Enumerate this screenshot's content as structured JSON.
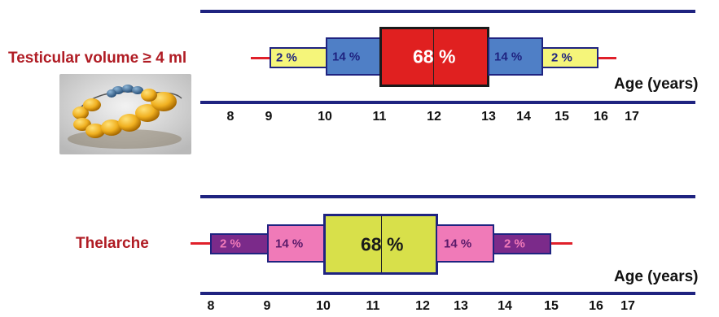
{
  "colors": {
    "navy": "#1f2380",
    "red_whisker": "#e0202a",
    "yellow": "#f5f57a",
    "blue": "#4f7fc6",
    "red": "#e02020",
    "purple": "#7b2a8a",
    "pink": "#f07ab8",
    "olive": "#d8e04a",
    "label_red": "#b01c24"
  },
  "panels": [
    {
      "label": "Testicular volume ≥ 4 ml",
      "axis_title": "Age (years)",
      "ticks": [
        "8",
        "9",
        "10",
        "11",
        "12",
        "13",
        "14",
        "15",
        "16",
        "17"
      ],
      "image_icon": "orchidometer-beads-photo",
      "segments": [
        {
          "text": "2 %",
          "color": "yellow"
        },
        {
          "text": "14 %",
          "color": "blue"
        },
        {
          "text": "68 %",
          "color": "red"
        },
        {
          "text": "14 %",
          "color": "blue"
        },
        {
          "text": "2 %",
          "color": "yellow"
        }
      ]
    },
    {
      "label": "Thelarche",
      "axis_title": "Age (years)",
      "ticks": [
        "8",
        "9",
        "10",
        "11",
        "12",
        "13",
        "14",
        "15",
        "16",
        "17"
      ],
      "segments": [
        {
          "text": "2 %",
          "color": "purple"
        },
        {
          "text": "14 %",
          "color": "pink"
        },
        {
          "text": "68 %",
          "color": "olive"
        },
        {
          "text": "14 %",
          "color": "pink"
        },
        {
          "text": "2 %",
          "color": "purple"
        }
      ]
    }
  ]
}
